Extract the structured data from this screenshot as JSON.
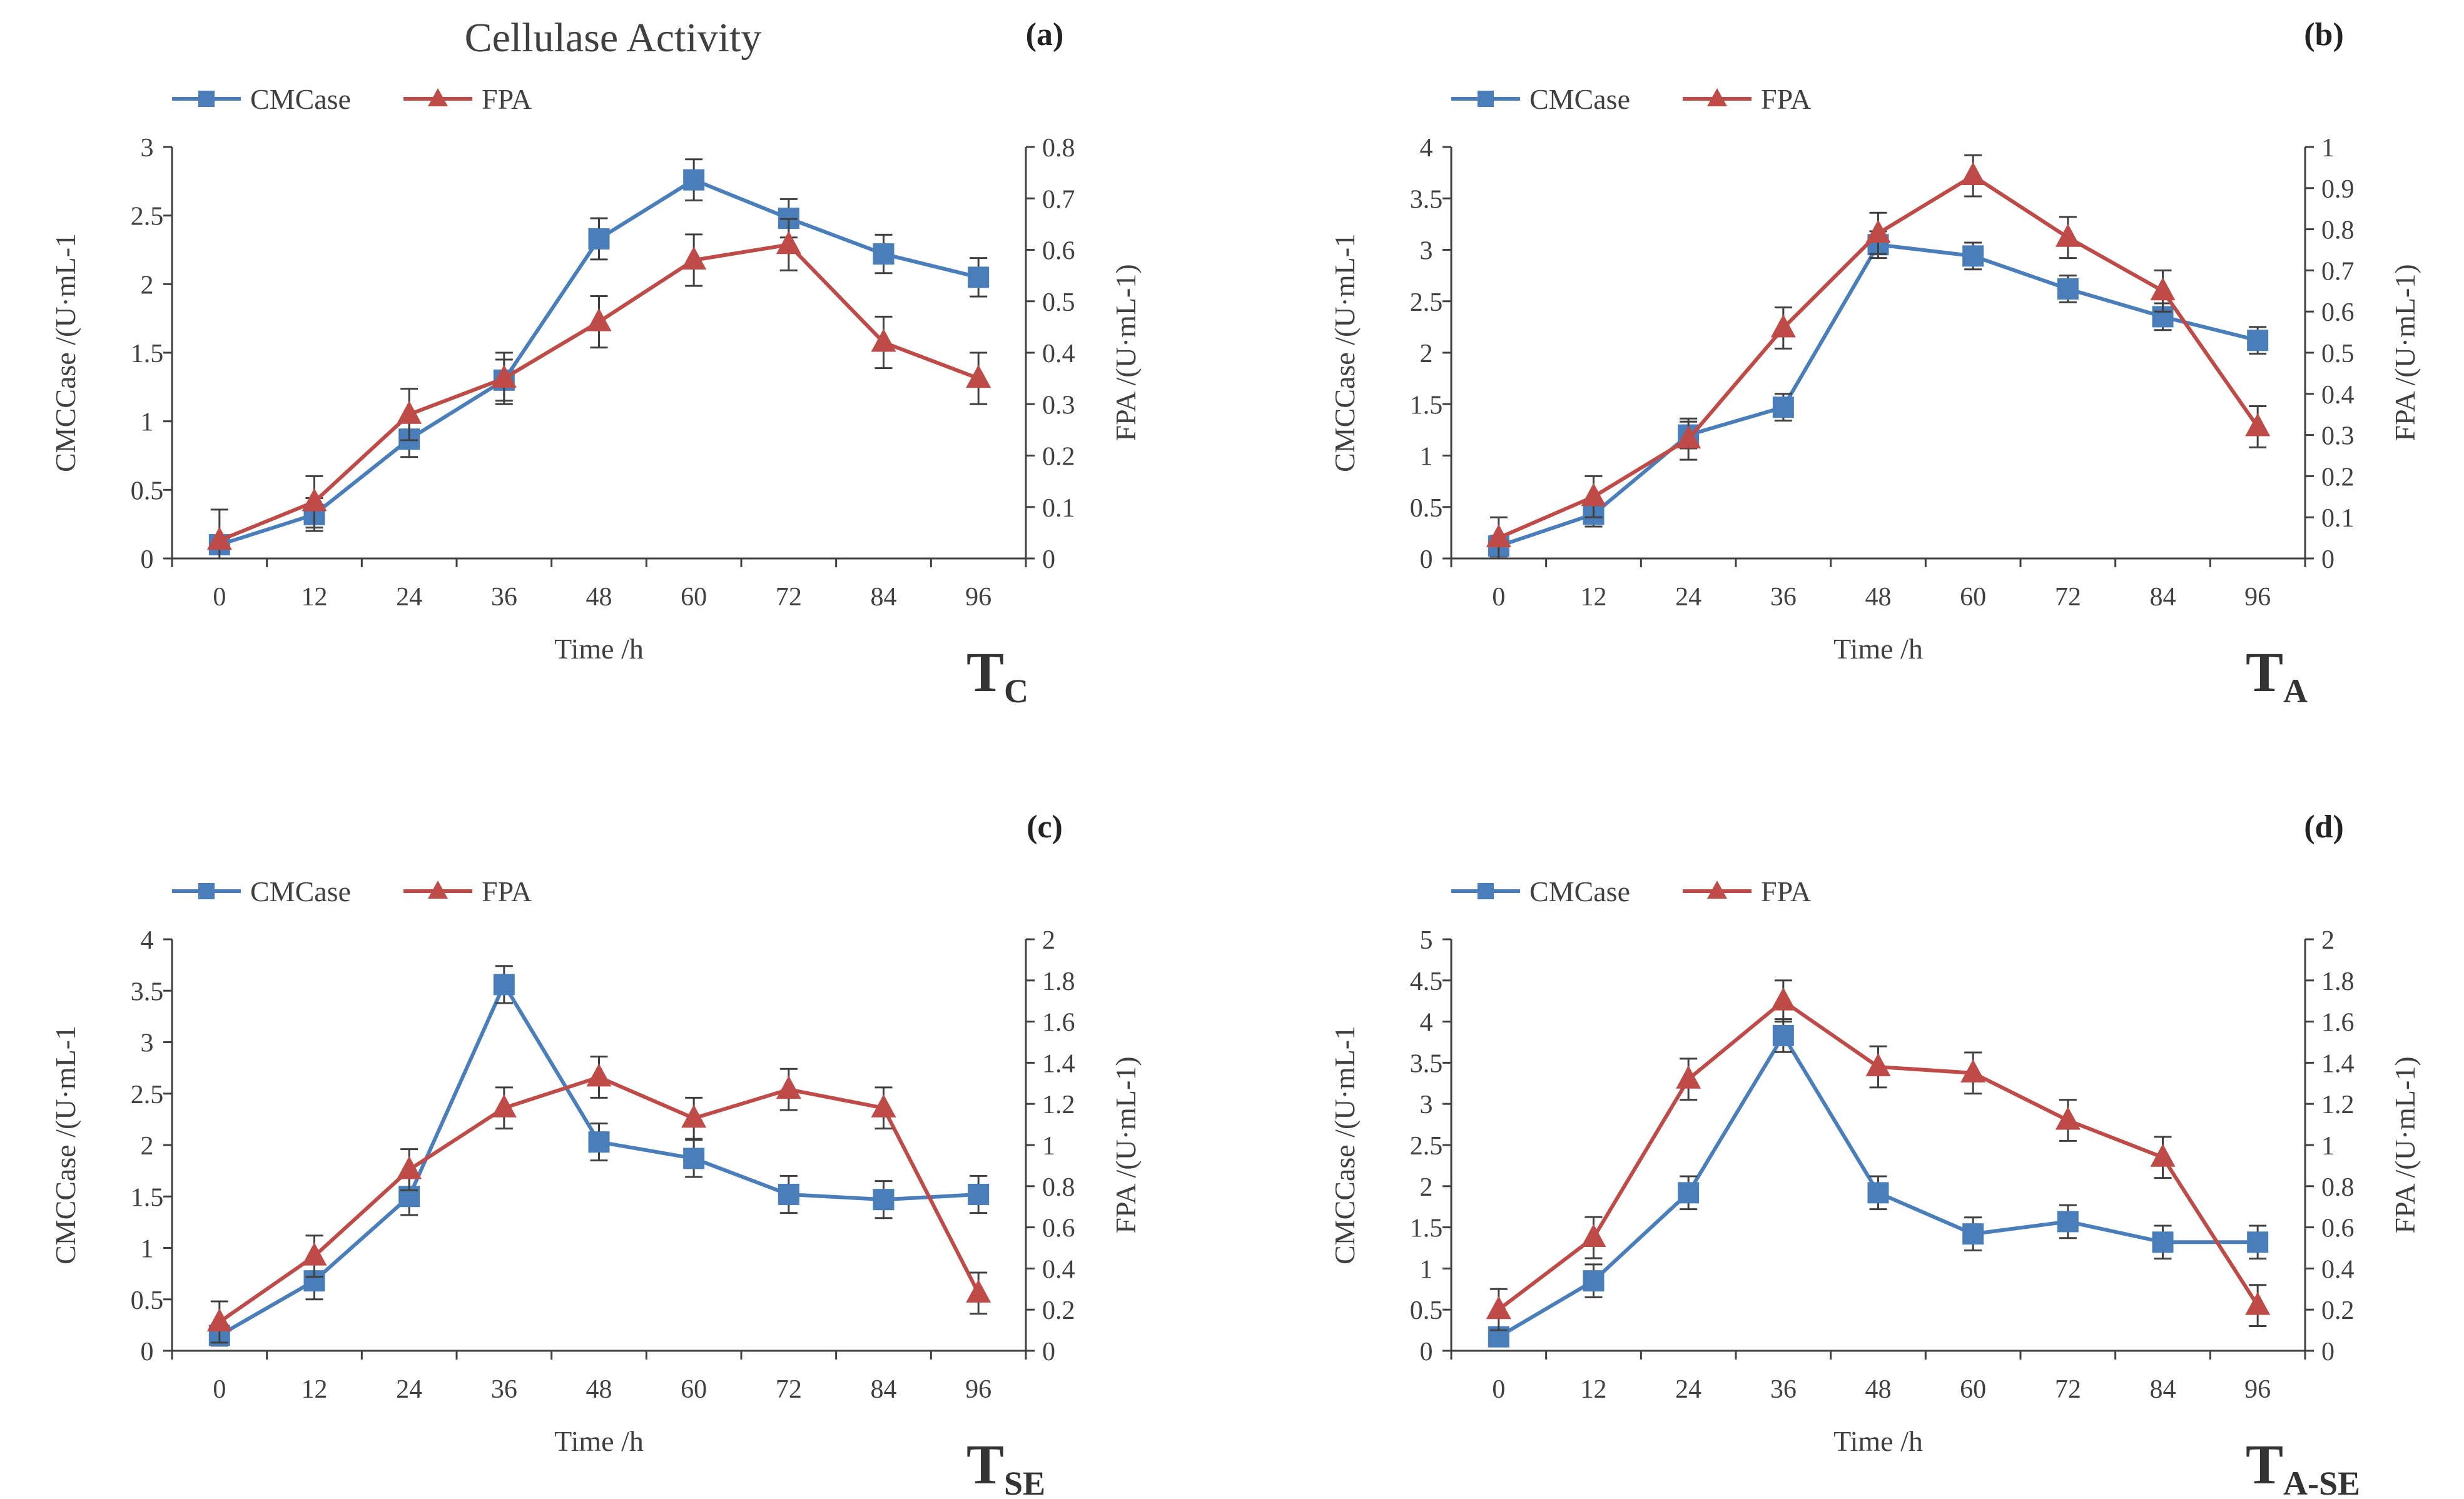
{
  "figure": {
    "title": "Cellulase Activity"
  },
  "colors": {
    "cmcase": "#4a7ebb",
    "fpa": "#be4b48",
    "axis": "#404040",
    "error": "#404040",
    "text": "#404040"
  },
  "chart_data": [
    {
      "type": "line",
      "panel_label": "(a)",
      "treatment": "T",
      "treatment_sub": "C",
      "xlabel": "Time  /h",
      "ylabel_left": "CMCCase /(U·mL-1",
      "ylabel_right": "FPA /(U·mL-1)",
      "categories": [
        0,
        12,
        24,
        36,
        48,
        60,
        72,
        84,
        96
      ],
      "y_left": {
        "min": 0,
        "max": 3,
        "step": 0.5,
        "ticks": [
          "0",
          "0.5",
          "1",
          "1.5",
          "2",
          "2.5",
          "3"
        ]
      },
      "y_right": {
        "min": 0,
        "max": 0.8,
        "step": 0.1,
        "ticks": [
          "0",
          "0.1",
          "0.2",
          "0.3",
          "0.4",
          "0.5",
          "0.6",
          "0.7",
          "0.8"
        ]
      },
      "series": [
        {
          "name": "CMCase",
          "axis": "left",
          "marker": "square",
          "values": [
            0.1,
            0.32,
            0.87,
            1.3,
            2.33,
            2.76,
            2.48,
            2.22,
            2.05
          ],
          "errors": [
            0.07,
            0.12,
            0.13,
            0.15,
            0.15,
            0.15,
            0.14,
            0.14,
            0.14
          ]
        },
        {
          "name": "FPA",
          "axis": "right",
          "marker": "triangle",
          "values": [
            0.035,
            0.11,
            0.28,
            0.35,
            0.46,
            0.58,
            0.61,
            0.42,
            0.35
          ],
          "errors": [
            0.06,
            0.05,
            0.05,
            0.05,
            0.05,
            0.05,
            0.05,
            0.05,
            0.05
          ]
        }
      ]
    },
    {
      "type": "line",
      "panel_label": "(b)",
      "treatment": "T",
      "treatment_sub": "A",
      "xlabel": "Time  /h",
      "ylabel_left": "CMCCase /(U·mL-1",
      "ylabel_right": "FPA /(U·mL-1)",
      "categories": [
        0,
        12,
        24,
        36,
        48,
        60,
        72,
        84,
        96
      ],
      "y_left": {
        "min": 0,
        "max": 4,
        "step": 0.5,
        "ticks": [
          "0",
          "0.5",
          "1",
          "1.5",
          "2",
          "2.5",
          "3",
          "3.5",
          "4"
        ]
      },
      "y_right": {
        "min": 0,
        "max": 1,
        "step": 0.1,
        "ticks": [
          "0",
          "0.1",
          "0.2",
          "0.3",
          "0.4",
          "0.5",
          "0.6",
          "0.7",
          "0.8",
          "0.9",
          "1"
        ]
      },
      "series": [
        {
          "name": "CMCase",
          "axis": "left",
          "marker": "square",
          "values": [
            0.12,
            0.43,
            1.2,
            1.47,
            3.05,
            2.94,
            2.62,
            2.35,
            2.12
          ],
          "errors": [
            0.1,
            0.12,
            0.13,
            0.13,
            0.13,
            0.13,
            0.13,
            0.13,
            0.13
          ]
        },
        {
          "name": "FPA",
          "axis": "right",
          "marker": "triangle",
          "values": [
            0.05,
            0.15,
            0.29,
            0.56,
            0.79,
            0.93,
            0.78,
            0.65,
            0.32
          ],
          "errors": [
            0.05,
            0.05,
            0.05,
            0.05,
            0.05,
            0.05,
            0.05,
            0.05,
            0.05
          ]
        }
      ]
    },
    {
      "type": "line",
      "panel_label": "(c)",
      "treatment": "T",
      "treatment_sub": "SE",
      "xlabel": "Time  /h",
      "ylabel_left": "CMCCase /(U·mL-1",
      "ylabel_right": "FPA /(U·mL-1)",
      "categories": [
        0,
        12,
        24,
        36,
        48,
        60,
        72,
        84,
        96
      ],
      "y_left": {
        "min": 0,
        "max": 4,
        "step": 0.5,
        "ticks": [
          "0",
          "0.5",
          "1",
          "1.5",
          "2",
          "2.5",
          "3",
          "3.5",
          "4"
        ]
      },
      "y_right": {
        "min": 0,
        "max": 2,
        "step": 0.2,
        "ticks": [
          "0",
          "0.2",
          "0.4",
          "0.6",
          "0.8",
          "1",
          "1.2",
          "1.4",
          "1.6",
          "1.8",
          "2"
        ]
      },
      "series": [
        {
          "name": "CMCase",
          "axis": "left",
          "marker": "square",
          "values": [
            0.15,
            0.68,
            1.5,
            3.56,
            2.03,
            1.87,
            1.52,
            1.47,
            1.52
          ],
          "errors": [
            0.1,
            0.18,
            0.18,
            0.18,
            0.18,
            0.18,
            0.18,
            0.18,
            0.18
          ]
        },
        {
          "name": "FPA",
          "axis": "right",
          "marker": "triangle",
          "values": [
            0.14,
            0.46,
            0.88,
            1.18,
            1.33,
            1.13,
            1.27,
            1.18,
            0.28
          ],
          "errors": [
            0.1,
            0.1,
            0.1,
            0.1,
            0.1,
            0.1,
            0.1,
            0.1,
            0.1
          ]
        }
      ]
    },
    {
      "type": "line",
      "panel_label": "(d)",
      "treatment": "T",
      "treatment_sub": "A-SE",
      "xlabel": "Time  /h",
      "ylabel_left": "CMCCase /(U·mL-1",
      "ylabel_right": "FPA /(U·mL-1)",
      "categories": [
        0,
        12,
        24,
        36,
        48,
        60,
        72,
        84,
        96
      ],
      "y_left": {
        "min": 0,
        "max": 5,
        "step": 0.5,
        "ticks": [
          "0",
          "0.5",
          "1",
          "1.5",
          "2",
          "2.5",
          "3",
          "3.5",
          "4",
          "4.5",
          "5"
        ]
      },
      "y_right": {
        "min": 0,
        "max": 2,
        "step": 0.2,
        "ticks": [
          "0",
          "0.2",
          "0.4",
          "0.6",
          "0.8",
          "1",
          "1.2",
          "1.4",
          "1.6",
          "1.8",
          "2"
        ]
      },
      "series": [
        {
          "name": "CMCase",
          "axis": "left",
          "marker": "square",
          "values": [
            0.17,
            0.85,
            1.92,
            3.83,
            1.92,
            1.42,
            1.57,
            1.32,
            1.32
          ],
          "errors": [
            0.1,
            0.2,
            0.2,
            0.2,
            0.2,
            0.2,
            0.2,
            0.2,
            0.2
          ]
        },
        {
          "name": "FPA",
          "axis": "right",
          "marker": "triangle",
          "values": [
            0.2,
            0.55,
            1.32,
            1.7,
            1.38,
            1.35,
            1.12,
            0.94,
            0.22
          ],
          "errors": [
            0.1,
            0.1,
            0.1,
            0.1,
            0.1,
            0.1,
            0.1,
            0.1,
            0.1
          ]
        }
      ]
    }
  ]
}
